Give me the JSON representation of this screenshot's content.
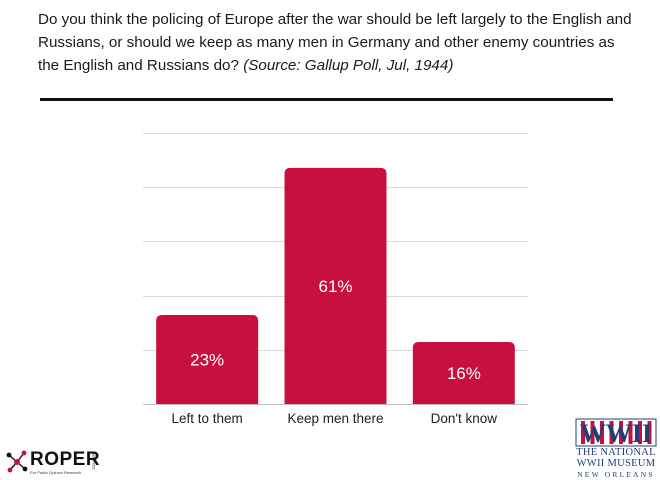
{
  "question": {
    "text": "Do you think the policing of Europe after the war should be left largely to the English and Russians, or should we keep as many men in Germany and other enemy countries as the English and Russians do?",
    "source": "(Source: Gallup Poll, Jul, 1944)"
  },
  "colors": {
    "bar": "#c8103e",
    "grid": "#d9d9d9",
    "axis": "#bfbfbf",
    "text": "#222222",
    "label_on_bar": "#ffffff"
  },
  "chart_data": {
    "type": "bar",
    "categories": [
      "Left to them",
      "Keep men there",
      "Don't know"
    ],
    "values": [
      23,
      61,
      16
    ],
    "value_labels": [
      "23%",
      "61%",
      "16%"
    ],
    "ylim": [
      0,
      70
    ],
    "gridlines": [
      0,
      14,
      28,
      42,
      56,
      70
    ],
    "grid": true,
    "title": "",
    "xlabel": "",
    "ylabel": ""
  },
  "logos": {
    "roper": {
      "name": "ROPER",
      "side": "CENTER",
      "tagline": "For Public Opinion Research",
      "icon": "roper-network-icon"
    },
    "museum": {
      "mark": "WWII",
      "line1": "THE NATIONAL",
      "line2": "WWII MUSEUM",
      "line3": "NEW ORLEANS"
    }
  }
}
